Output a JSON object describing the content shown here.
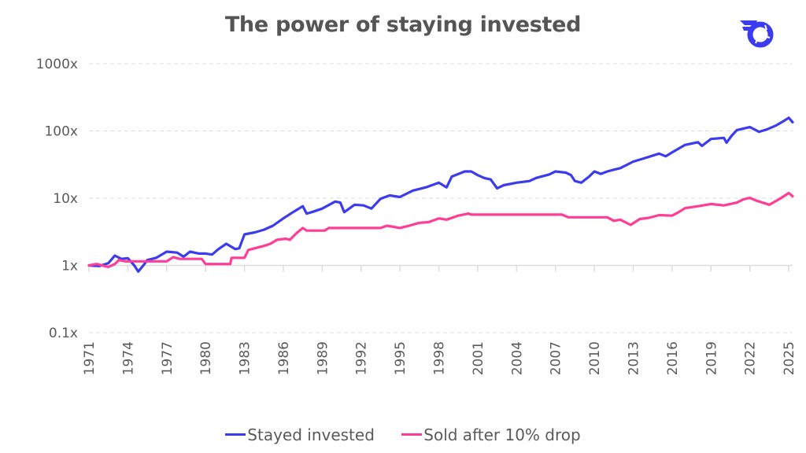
{
  "header": {
    "title": "The power of staying invested",
    "logo_icon": "brand-logo-icon"
  },
  "colors": {
    "stayed_invested": "#3b3bf0",
    "sold_after_drop": "#ff3c96",
    "gridline": "#dddddd",
    "axis": "#dcdcdc",
    "text": "#5a5a5a",
    "logo": "#3b3bf0"
  },
  "chart_data": {
    "type": "line",
    "title": "The power of staying invested",
    "xlabel": "",
    "ylabel": "",
    "yscale": "log",
    "ylim": [
      0.1,
      1000
    ],
    "xlim": [
      1971,
      2025.3
    ],
    "grid": true,
    "legend_position": "bottom",
    "y_ticks": [
      {
        "value": 1000,
        "label": "1000x"
      },
      {
        "value": 100,
        "label": "100x"
      },
      {
        "value": 10,
        "label": "10x"
      },
      {
        "value": 1,
        "label": "1x"
      },
      {
        "value": 0.1,
        "label": "0.1x"
      }
    ],
    "x_ticks": [
      {
        "value": 1971,
        "label": "1971"
      },
      {
        "value": 1974,
        "label": "1974"
      },
      {
        "value": 1977,
        "label": "1977"
      },
      {
        "value": 1980,
        "label": "1980"
      },
      {
        "value": 1983,
        "label": "1983"
      },
      {
        "value": 1986,
        "label": "1986"
      },
      {
        "value": 1989,
        "label": "1989"
      },
      {
        "value": 1992,
        "label": "1992"
      },
      {
        "value": 1995,
        "label": "1995"
      },
      {
        "value": 1998,
        "label": "1998"
      },
      {
        "value": 2001,
        "label": "2001"
      },
      {
        "value": 2004,
        "label": "2004"
      },
      {
        "value": 2007,
        "label": "2007"
      },
      {
        "value": 2010,
        "label": "2010"
      },
      {
        "value": 2013,
        "label": "2013"
      },
      {
        "value": 2016,
        "label": "2016"
      },
      {
        "value": 2019,
        "label": "2019"
      },
      {
        "value": 2022,
        "label": "2022"
      },
      {
        "value": 2025,
        "label": "2025"
      }
    ],
    "series": [
      {
        "name": "Stayed invested",
        "color": "#3b3bf0",
        "points": [
          [
            1971.0,
            1.0
          ],
          [
            1971.8,
            0.98
          ],
          [
            1972.5,
            1.08
          ],
          [
            1973.0,
            1.4
          ],
          [
            1973.5,
            1.25
          ],
          [
            1974.0,
            1.28
          ],
          [
            1974.5,
            1.0
          ],
          [
            1974.8,
            0.81
          ],
          [
            1975.2,
            1.0
          ],
          [
            1975.5,
            1.2
          ],
          [
            1976.2,
            1.3
          ],
          [
            1977.0,
            1.6
          ],
          [
            1977.8,
            1.55
          ],
          [
            1978.3,
            1.35
          ],
          [
            1978.8,
            1.6
          ],
          [
            1979.5,
            1.5
          ],
          [
            1980.0,
            1.5
          ],
          [
            1980.5,
            1.45
          ],
          [
            1981.0,
            1.75
          ],
          [
            1981.6,
            2.1
          ],
          [
            1982.3,
            1.75
          ],
          [
            1982.6,
            1.8
          ],
          [
            1983.0,
            2.9
          ],
          [
            1983.8,
            3.1
          ],
          [
            1984.5,
            3.4
          ],
          [
            1985.2,
            3.9
          ],
          [
            1986.0,
            5.0
          ],
          [
            1986.8,
            6.3
          ],
          [
            1987.5,
            7.6
          ],
          [
            1987.8,
            5.9
          ],
          [
            1988.3,
            6.3
          ],
          [
            1989.0,
            7.0
          ],
          [
            1990.0,
            8.9
          ],
          [
            1990.4,
            8.6
          ],
          [
            1990.7,
            6.2
          ],
          [
            1991.5,
            8.0
          ],
          [
            1992.2,
            7.8
          ],
          [
            1992.8,
            7.0
          ],
          [
            1993.5,
            9.8
          ],
          [
            1994.2,
            11.0
          ],
          [
            1995.0,
            10.4
          ],
          [
            1996.0,
            13.0
          ],
          [
            1997.0,
            14.5
          ],
          [
            1998.0,
            17.0
          ],
          [
            1998.6,
            14.5
          ],
          [
            1999.0,
            21.0
          ],
          [
            2000.0,
            25.0
          ],
          [
            2000.5,
            25.0
          ],
          [
            2001.0,
            22.0
          ],
          [
            2001.5,
            20.0
          ],
          [
            2002.0,
            19.0
          ],
          [
            2002.5,
            14.0
          ],
          [
            2003.0,
            15.6
          ],
          [
            2004.0,
            17.0
          ],
          [
            2005.0,
            18.0
          ],
          [
            2005.5,
            20.0
          ],
          [
            2006.5,
            22.5
          ],
          [
            2007.0,
            25.0
          ],
          [
            2007.8,
            24.0
          ],
          [
            2008.2,
            22.0
          ],
          [
            2008.5,
            18.0
          ],
          [
            2009.0,
            17.0
          ],
          [
            2009.6,
            21.0
          ],
          [
            2010.0,
            25.0
          ],
          [
            2010.5,
            23.0
          ],
          [
            2011.0,
            25.0
          ],
          [
            2011.5,
            26.5
          ],
          [
            2012.0,
            28.0
          ],
          [
            2013.0,
            35.0
          ],
          [
            2014.0,
            40.0
          ],
          [
            2015.0,
            46.0
          ],
          [
            2015.5,
            42.0
          ],
          [
            2016.0,
            48.0
          ],
          [
            2017.0,
            62.0
          ],
          [
            2018.0,
            68.0
          ],
          [
            2018.3,
            60.0
          ],
          [
            2019.0,
            76.0
          ],
          [
            2020.0,
            79.0
          ],
          [
            2020.2,
            67.0
          ],
          [
            2020.6,
            85.0
          ],
          [
            2021.0,
            103.0
          ],
          [
            2022.0,
            114.0
          ],
          [
            2022.7,
            97.0
          ],
          [
            2023.3,
            105.0
          ],
          [
            2024.0,
            120.0
          ],
          [
            2024.6,
            140.0
          ],
          [
            2025.0,
            157.0
          ],
          [
            2025.3,
            135.0
          ]
        ]
      },
      {
        "name": "Sold after 10% drop",
        "color": "#ff3c96",
        "points": [
          [
            1971.0,
            1.0
          ],
          [
            1971.6,
            1.05
          ],
          [
            1972.0,
            1.0
          ],
          [
            1972.5,
            0.95
          ],
          [
            1973.0,
            1.05
          ],
          [
            1973.3,
            1.2
          ],
          [
            1973.8,
            1.15
          ],
          [
            1977.0,
            1.15
          ],
          [
            1977.5,
            1.33
          ],
          [
            1978.0,
            1.25
          ],
          [
            1979.7,
            1.25
          ],
          [
            1980.0,
            1.05
          ],
          [
            1981.9,
            1.05
          ],
          [
            1982.0,
            1.3
          ],
          [
            1983.0,
            1.3
          ],
          [
            1983.3,
            1.7
          ],
          [
            1984.5,
            1.95
          ],
          [
            1985.0,
            2.1
          ],
          [
            1985.5,
            2.4
          ],
          [
            1986.2,
            2.5
          ],
          [
            1986.5,
            2.4
          ],
          [
            1987.0,
            3.0
          ],
          [
            1987.5,
            3.6
          ],
          [
            1987.8,
            3.3
          ],
          [
            1989.2,
            3.3
          ],
          [
            1989.5,
            3.6
          ],
          [
            1993.5,
            3.6
          ],
          [
            1994.0,
            3.9
          ],
          [
            1995.0,
            3.6
          ],
          [
            1995.7,
            3.9
          ],
          [
            1996.5,
            4.3
          ],
          [
            1997.2,
            4.4
          ],
          [
            1998.0,
            5.0
          ],
          [
            1998.6,
            4.8
          ],
          [
            1999.5,
            5.5
          ],
          [
            2000.3,
            5.9
          ],
          [
            2000.5,
            5.7
          ],
          [
            2007.5,
            5.7
          ],
          [
            2008.0,
            5.2
          ],
          [
            2011.0,
            5.2
          ],
          [
            2011.5,
            4.6
          ],
          [
            2012.0,
            4.8
          ],
          [
            2012.8,
            4.0
          ],
          [
            2013.5,
            4.9
          ],
          [
            2014.2,
            5.1
          ],
          [
            2015.0,
            5.6
          ],
          [
            2016.0,
            5.5
          ],
          [
            2016.5,
            6.2
          ],
          [
            2017.0,
            7.1
          ],
          [
            2018.0,
            7.6
          ],
          [
            2019.0,
            8.2
          ],
          [
            2020.0,
            7.8
          ],
          [
            2021.0,
            8.6
          ],
          [
            2021.5,
            9.6
          ],
          [
            2022.0,
            10.1
          ],
          [
            2022.5,
            9.2
          ],
          [
            2023.5,
            8.0
          ],
          [
            2024.2,
            9.5
          ],
          [
            2025.0,
            11.9
          ],
          [
            2025.3,
            10.7
          ]
        ]
      }
    ]
  },
  "legend": {
    "items": [
      {
        "label": "Stayed invested"
      },
      {
        "label": "Sold after 10% drop"
      }
    ]
  }
}
